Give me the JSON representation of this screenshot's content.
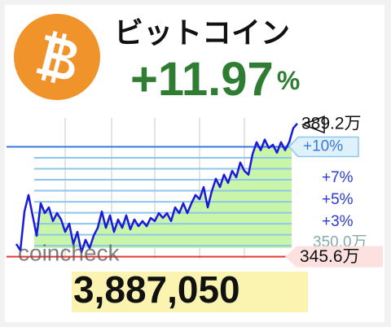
{
  "title": "ビットコイン",
  "change": "+11.97",
  "change_unit": "%",
  "price": "3,887,050",
  "watermark": "coincheck",
  "chart_data": {
    "type": "line",
    "color": "#1a1adc",
    "fill_color": "#c8f5a8",
    "ylim": [
      345,
      390
    ],
    "values": [
      349.6,
      347.6,
      359.8,
      365.0,
      358.6,
      352.2,
      362.4,
      359.3,
      361.1,
      356.8,
      359.3,
      357.3,
      353.4,
      356.0,
      349.6,
      353.4,
      347.0,
      350.9,
      348.3,
      352.2,
      354.7,
      359.8,
      354.7,
      358.6,
      353.4,
      357.3,
      354.7,
      358.6,
      354.2,
      357.3,
      355.2,
      356.8,
      355.2,
      357.8,
      356.8,
      359.3,
      357.8,
      359.3,
      356.8,
      361.1,
      359.3,
      362.4,
      359.3,
      362.4,
      365.0,
      363.7,
      367.5,
      361.1,
      366.2,
      370.1,
      367.5,
      371.4,
      368.8,
      372.6,
      370.6,
      375.2,
      372.6,
      371.4,
      377.8,
      381.6,
      379.1,
      382.4,
      379.8,
      380.8,
      378.3,
      381.6,
      379.1,
      381.6,
      386.0,
      387.5
    ],
    "base": {
      "value": 345.6,
      "label": "345.6万"
    },
    "high": {
      "value": 389.2,
      "label": "389.2万"
    },
    "level": {
      "value": 350.0,
      "label": "350.0万"
    },
    "percent_ticks": [
      1,
      2,
      {
        "value": 3,
        "label": "+3%"
      },
      4,
      {
        "value": 5,
        "label": "+5%"
      },
      6,
      {
        "value": 7,
        "label": "+7%"
      },
      8,
      9,
      {
        "value": 10,
        "label": "+10%"
      }
    ]
  }
}
